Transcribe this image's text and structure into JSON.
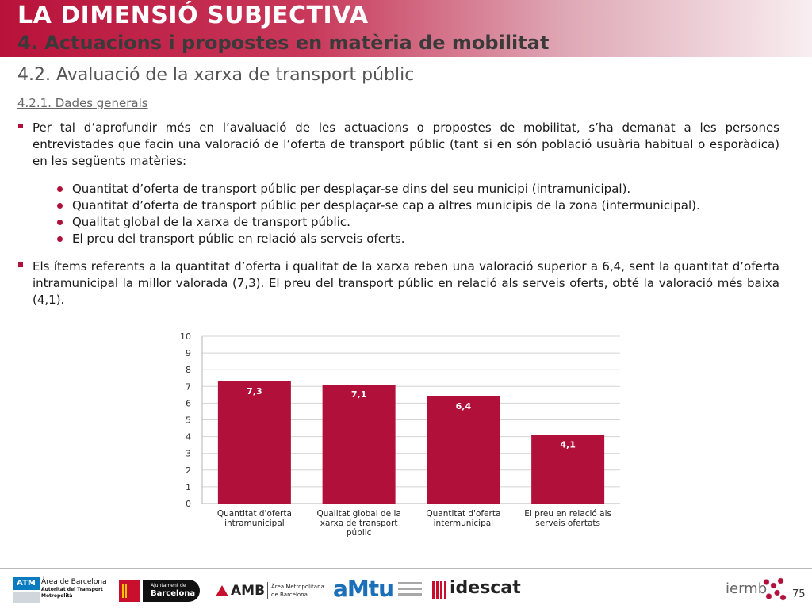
{
  "header": {
    "title": "LA DIMENSIÓ SUBJECTIVA",
    "subtitle": "4. Actuacions i propostes en matèria de mobilitat"
  },
  "section": {
    "title": "4.2. Avaluació de la xarxa de transport públic",
    "subtitle": "4.2.1. Dades generals"
  },
  "paragraph1": "Per tal d’aprofundir més en l’avaluació de les actuacions o propostes de mobilitat, s’ha demanat a les persones entrevistades que facin una valoració de l’oferta de transport públic (tant si en són població usuària habitual o esporàdica) en les següents matèries:",
  "list": [
    "Quantitat d’oferta de transport públic per desplaçar-se dins del seu municipi (intramunicipal).",
    "Quantitat d’oferta de transport públic per desplaçar-se cap a altres municipis de la zona (intermunicipal).",
    "Qualitat global de la xarxa de transport públic.",
    "El preu del transport públic en relació als serveis oferts."
  ],
  "paragraph2": "Els ítems referents a la quantitat d’oferta i qualitat de la xarxa reben una valoració superior a 6,4, sent la quantitat d’oferta intramunicipal la millor valorada (7,3). El preu del transport públic en relació als serveis oferts, obté la valoració més baixa (4,1).",
  "chart_data": {
    "type": "bar",
    "categories": [
      [
        "Quantitat d'oferta",
        "intramunicipal"
      ],
      [
        "Qualitat global de la",
        "xarxa de transport",
        "públic"
      ],
      [
        "Quantitat d'oferta",
        "intermunicipal"
      ],
      [
        "El preu en relació als",
        "serveis ofertats"
      ]
    ],
    "values": [
      7.3,
      7.1,
      6.4,
      4.1
    ],
    "value_labels": [
      "7,3",
      "7,1",
      "6,4",
      "4,1"
    ],
    "ylim": [
      0,
      10
    ],
    "yticks": [
      0,
      1,
      2,
      3,
      4,
      5,
      6,
      7,
      8,
      9,
      10
    ],
    "grid": true,
    "bar_color": "#b0103a",
    "title": "",
    "xlabel": "",
    "ylabel": ""
  },
  "footer": {
    "logos": {
      "atm_name": "ATM",
      "atm_line1": "Àrea de Barcelona",
      "atm_line2": "Autoritat del Transport",
      "atm_line3": "Metropolità",
      "ajuntament_line1": "Ajuntament de",
      "ajuntament_line2": "Barcelona",
      "amb_name": "AMB",
      "amb_line1": "Àrea Metropolitana",
      "amb_line2": "de Barcelona",
      "amtu_name": "aMtu",
      "idescat_name": "idescat",
      "iermb_name": "iermb"
    },
    "page_number": "75"
  }
}
